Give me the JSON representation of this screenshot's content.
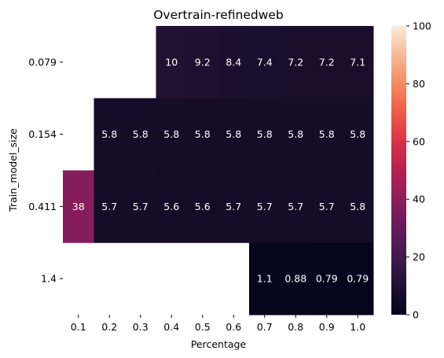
{
  "chart_data": {
    "type": "heatmap",
    "title": "Overtrain-refinedweb",
    "xlabel": "Percentage",
    "ylabel": "Train_model_size",
    "x_categories": [
      "0.1",
      "0.2",
      "0.3",
      "0.4",
      "0.5",
      "0.6",
      "0.7",
      "0.8",
      "0.9",
      "1.0"
    ],
    "y_categories": [
      "0.079",
      "0.154",
      "0.411",
      "1.4"
    ],
    "values": [
      [
        null,
        null,
        null,
        10,
        9.2,
        8.4,
        7.4,
        7.2,
        7.2,
        7.1
      ],
      [
        null,
        5.8,
        5.8,
        5.8,
        5.8,
        5.8,
        5.8,
        5.8,
        5.8,
        5.8
      ],
      [
        38,
        5.7,
        5.7,
        5.6,
        5.6,
        5.7,
        5.7,
        5.7,
        5.7,
        5.8
      ],
      [
        null,
        null,
        null,
        null,
        null,
        null,
        1.1,
        0.88,
        0.79,
        0.79
      ]
    ],
    "value_labels": [
      [
        null,
        null,
        null,
        "10",
        "9.2",
        "8.4",
        "7.4",
        "7.2",
        "7.2",
        "7.1"
      ],
      [
        null,
        "5.8",
        "5.8",
        "5.8",
        "5.8",
        "5.8",
        "5.8",
        "5.8",
        "5.8",
        "5.8"
      ],
      [
        "38",
        "5.7",
        "5.7",
        "5.6",
        "5.6",
        "5.7",
        "5.7",
        "5.7",
        "5.7",
        "5.8"
      ],
      [
        null,
        null,
        null,
        null,
        null,
        null,
        "1.1",
        "0.88",
        "0.79",
        "0.79"
      ]
    ],
    "colorbar": {
      "range": [
        0,
        100
      ],
      "ticks": [
        0,
        20,
        40,
        60,
        80,
        100
      ],
      "colormap": "rocket"
    },
    "grid": false,
    "legend": "colorbar-right"
  }
}
